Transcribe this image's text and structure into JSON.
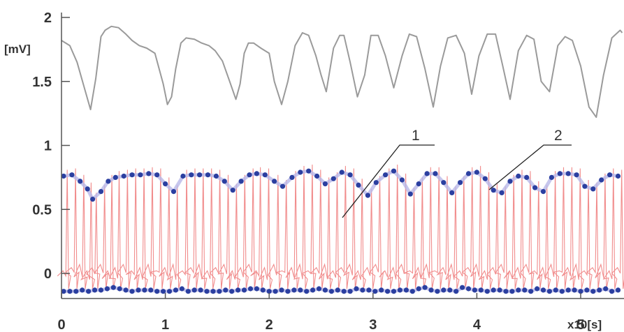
{
  "chart_data": {
    "type": "line",
    "title": "",
    "xlabel": "x10[s]",
    "ylabel": "[mV]",
    "xlim": [
      0,
      5.4
    ],
    "ylim": [
      -0.2,
      2.05
    ],
    "x_ticks": [
      "0",
      "1",
      "2",
      "3",
      "4",
      "5"
    ],
    "y_ticks": [
      "2",
      "1.5",
      "1",
      "0.5",
      "0"
    ],
    "grid": false,
    "annotations": [
      "1",
      "2"
    ],
    "colors": {
      "upper_trace": "#9a9a9a",
      "ecg_trace": "#f08080",
      "peak_markers": "#2b3fa0",
      "peak_halo": "#b8b8e8",
      "axis": "#555555"
    },
    "series": [
      {
        "role": "upper-trace",
        "x": [
          0,
          0.08,
          0.15,
          0.22,
          0.28,
          0.33,
          0.38,
          0.42,
          0.48,
          0.55,
          0.62,
          0.68,
          0.75,
          0.82,
          0.9,
          0.98,
          1.02,
          1.06,
          1.1,
          1.15,
          1.2,
          1.28,
          1.35,
          1.42,
          1.48,
          1.55,
          1.62,
          1.68,
          1.72,
          1.76,
          1.8,
          1.85,
          1.92,
          2.0,
          2.05,
          2.12,
          2.18,
          2.25,
          2.32,
          2.38,
          2.45,
          2.5,
          2.55,
          2.62,
          2.68,
          2.72,
          2.78,
          2.85,
          2.92,
          2.98,
          3.05,
          3.12,
          3.2,
          3.28,
          3.35,
          3.42,
          3.5,
          3.58,
          3.65,
          3.72,
          3.8,
          3.88,
          3.95,
          4.02,
          4.1,
          4.18,
          4.25,
          4.32,
          4.4,
          4.48,
          4.55,
          4.62,
          4.7,
          4.78,
          4.85,
          4.92,
          5.0,
          5.08,
          5.15,
          5.22,
          5.3,
          5.38,
          5.4
        ],
        "y": [
          1.82,
          1.78,
          1.65,
          1.45,
          1.28,
          1.52,
          1.85,
          1.9,
          1.93,
          1.92,
          1.87,
          1.82,
          1.78,
          1.76,
          1.72,
          1.48,
          1.32,
          1.38,
          1.6,
          1.8,
          1.84,
          1.83,
          1.8,
          1.78,
          1.74,
          1.66,
          1.5,
          1.36,
          1.48,
          1.72,
          1.8,
          1.8,
          1.76,
          1.72,
          1.5,
          1.32,
          1.5,
          1.78,
          1.88,
          1.86,
          1.7,
          1.55,
          1.42,
          1.76,
          1.86,
          1.86,
          1.65,
          1.38,
          1.55,
          1.86,
          1.86,
          1.7,
          1.45,
          1.7,
          1.87,
          1.85,
          1.6,
          1.3,
          1.62,
          1.84,
          1.86,
          1.72,
          1.4,
          1.7,
          1.87,
          1.87,
          1.62,
          1.36,
          1.74,
          1.86,
          1.83,
          1.5,
          1.42,
          1.78,
          1.85,
          1.82,
          1.62,
          1.3,
          1.22,
          1.55,
          1.84,
          1.9,
          1.88
        ]
      },
      {
        "role": "upper-peak-markers",
        "x": [
          0.02,
          0.1,
          0.18,
          0.25,
          0.3,
          0.38,
          0.45,
          0.52,
          0.6,
          0.68,
          0.76,
          0.84,
          0.92,
          1.0,
          1.08,
          1.17,
          1.25,
          1.33,
          1.41,
          1.49,
          1.57,
          1.65,
          1.73,
          1.81,
          1.88,
          1.96,
          2.05,
          2.13,
          2.22,
          2.3,
          2.38,
          2.46,
          2.54,
          2.62,
          2.7,
          2.78,
          2.86,
          2.95,
          3.03,
          3.12,
          3.2,
          3.28,
          3.36,
          3.44,
          3.52,
          3.6,
          3.68,
          3.76,
          3.84,
          3.92,
          4.0,
          4.08,
          4.16,
          4.24,
          4.32,
          4.4,
          4.48,
          4.56,
          4.64,
          4.72,
          4.8,
          4.88,
          4.96,
          5.04,
          5.12,
          5.2,
          5.28,
          5.36
        ],
        "y": [
          0.76,
          0.77,
          0.72,
          0.66,
          0.58,
          0.64,
          0.72,
          0.75,
          0.76,
          0.77,
          0.77,
          0.78,
          0.77,
          0.7,
          0.64,
          0.76,
          0.77,
          0.77,
          0.77,
          0.76,
          0.72,
          0.65,
          0.72,
          0.77,
          0.78,
          0.77,
          0.72,
          0.68,
          0.75,
          0.79,
          0.8,
          0.76,
          0.7,
          0.74,
          0.79,
          0.77,
          0.69,
          0.61,
          0.71,
          0.77,
          0.8,
          0.73,
          0.62,
          0.7,
          0.78,
          0.78,
          0.71,
          0.63,
          0.71,
          0.78,
          0.79,
          0.74,
          0.65,
          0.63,
          0.72,
          0.76,
          0.75,
          0.67,
          0.64,
          0.75,
          0.78,
          0.78,
          0.77,
          0.68,
          0.66,
          0.73,
          0.77,
          0.76
        ]
      },
      {
        "role": "lower-baseline-markers",
        "x": [
          0.02,
          0.08,
          0.14,
          0.2,
          0.26,
          0.32,
          0.38,
          0.44,
          0.5,
          0.56,
          0.62,
          0.68,
          0.74,
          0.8,
          0.86,
          0.92,
          0.98,
          1.04,
          1.1,
          1.16,
          1.22,
          1.28,
          1.34,
          1.4,
          1.46,
          1.52,
          1.58,
          1.64,
          1.7,
          1.76,
          1.82,
          1.88,
          1.94,
          2.0,
          2.06,
          2.12,
          2.18,
          2.24,
          2.3,
          2.36,
          2.42,
          2.48,
          2.54,
          2.6,
          2.66,
          2.72,
          2.78,
          2.84,
          2.9,
          2.96,
          3.02,
          3.08,
          3.14,
          3.2,
          3.26,
          3.32,
          3.38,
          3.44,
          3.5,
          3.56,
          3.62,
          3.68,
          3.74,
          3.8,
          3.86,
          3.92,
          3.98,
          4.04,
          4.1,
          4.16,
          4.22,
          4.28,
          4.34,
          4.4,
          4.46,
          4.52,
          4.58,
          4.64,
          4.7,
          4.76,
          4.82,
          4.88,
          4.94,
          5.0,
          5.06,
          5.12,
          5.18,
          5.24,
          5.3,
          5.36
        ],
        "y": [
          -0.14,
          -0.14,
          -0.14,
          -0.13,
          -0.14,
          -0.13,
          -0.13,
          -0.12,
          -0.11,
          -0.12,
          -0.13,
          -0.14,
          -0.13,
          -0.13,
          -0.13,
          -0.14,
          -0.14,
          -0.14,
          -0.13,
          -0.12,
          -0.14,
          -0.13,
          -0.13,
          -0.14,
          -0.14,
          -0.14,
          -0.13,
          -0.14,
          -0.13,
          -0.13,
          -0.12,
          -0.12,
          -0.13,
          -0.14,
          -0.14,
          -0.13,
          -0.14,
          -0.13,
          -0.13,
          -0.14,
          -0.13,
          -0.12,
          -0.13,
          -0.14,
          -0.13,
          -0.14,
          -0.14,
          -0.12,
          -0.13,
          -0.13,
          -0.14,
          -0.13,
          -0.14,
          -0.14,
          -0.13,
          -0.13,
          -0.14,
          -0.12,
          -0.11,
          -0.13,
          -0.14,
          -0.13,
          -0.13,
          -0.14,
          -0.11,
          -0.12,
          -0.13,
          -0.13,
          -0.14,
          -0.13,
          -0.13,
          -0.14,
          -0.14,
          -0.13,
          -0.13,
          -0.14,
          -0.12,
          -0.13,
          -0.14,
          -0.13,
          -0.14,
          -0.13,
          -0.13,
          -0.14,
          -0.13,
          -0.14,
          -0.13,
          -0.12,
          -0.14,
          -0.13
        ]
      }
    ]
  }
}
